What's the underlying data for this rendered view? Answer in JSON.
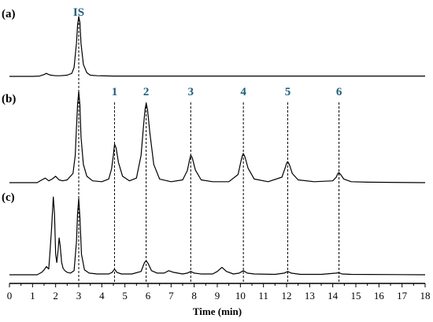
{
  "chart_data": {
    "type": "line",
    "xlabel": "Time (min)",
    "ylabel": "",
    "xlim": [
      0,
      18
    ],
    "x_ticks": [
      "0",
      "1",
      "2",
      "3",
      "4",
      "5",
      "6",
      "7",
      "8",
      "9",
      "10",
      "11",
      "12",
      "13",
      "14",
      "15",
      "16",
      "17",
      "18"
    ],
    "grid": false,
    "guide_lines": [
      {
        "label": "IS",
        "x": 3.0
      },
      {
        "label": "1",
        "x": 4.55
      },
      {
        "label": "2",
        "x": 5.92
      },
      {
        "label": "3",
        "x": 7.85
      },
      {
        "label": "4",
        "x": 10.13
      },
      {
        "label": "5",
        "x": 12.05
      },
      {
        "label": "6",
        "x": 14.27
      }
    ],
    "series": [
      {
        "panel": "(a)",
        "x": [
          0,
          1,
          1.3,
          1.5,
          1.6,
          1.7,
          1.8,
          2.0,
          2.2,
          2.5,
          2.7,
          2.8,
          2.9,
          2.95,
          3.0,
          3.05,
          3.1,
          3.2,
          3.35,
          3.5,
          3.8,
          4.5,
          6,
          8,
          10,
          12,
          14,
          16,
          18
        ],
        "y": [
          0,
          0,
          0.005,
          0.03,
          0.05,
          0.03,
          0.02,
          0.01,
          0.01,
          0.02,
          0.05,
          0.15,
          0.55,
          0.85,
          1.0,
          0.9,
          0.55,
          0.2,
          0.06,
          0.02,
          0.01,
          0.005,
          0.005,
          0.005,
          0.005,
          0.005,
          0.005,
          0.005,
          0.005
        ]
      },
      {
        "panel": "(b)",
        "x": [
          0,
          1.2,
          1.4,
          1.55,
          1.7,
          1.85,
          2.0,
          2.15,
          2.3,
          2.5,
          2.75,
          2.85,
          2.9,
          2.95,
          3.0,
          3.05,
          3.1,
          3.2,
          3.35,
          3.6,
          4.0,
          4.3,
          4.42,
          4.5,
          4.55,
          4.62,
          4.72,
          4.9,
          5.2,
          5.5,
          5.7,
          5.8,
          5.87,
          5.92,
          5.98,
          6.08,
          6.25,
          6.5,
          7.0,
          7.5,
          7.7,
          7.8,
          7.85,
          7.92,
          8.05,
          8.3,
          8.8,
          9.5,
          9.9,
          10.03,
          10.09,
          10.13,
          10.2,
          10.33,
          10.6,
          11.2,
          11.8,
          11.95,
          12.01,
          12.05,
          12.12,
          12.25,
          12.5,
          13.2,
          14.0,
          14.15,
          14.22,
          14.27,
          14.34,
          14.48,
          14.8,
          15.5,
          18
        ],
        "y": [
          0,
          0,
          0.03,
          0.05,
          0.02,
          0.04,
          0.07,
          0.03,
          0.02,
          0.03,
          0.1,
          0.3,
          0.6,
          0.85,
          1.0,
          0.85,
          0.5,
          0.2,
          0.07,
          0.02,
          0.01,
          0.04,
          0.15,
          0.3,
          0.42,
          0.38,
          0.22,
          0.07,
          0.02,
          0.05,
          0.3,
          0.6,
          0.8,
          0.87,
          0.8,
          0.55,
          0.2,
          0.04,
          0.01,
          0.03,
          0.13,
          0.25,
          0.3,
          0.27,
          0.14,
          0.03,
          0.01,
          0.01,
          0.09,
          0.24,
          0.3,
          0.32,
          0.28,
          0.16,
          0.04,
          0.01,
          0.06,
          0.17,
          0.22,
          0.23,
          0.2,
          0.1,
          0.03,
          0.01,
          0.02,
          0.06,
          0.1,
          0.11,
          0.09,
          0.04,
          0.01,
          0.005,
          0
        ]
      },
      {
        "panel": "(c)",
        "x": [
          0,
          1.2,
          1.4,
          1.5,
          1.6,
          1.7,
          1.75,
          1.82,
          1.9,
          1.95,
          2.0,
          2.05,
          2.1,
          2.15,
          2.2,
          2.26,
          2.32,
          2.4,
          2.5,
          2.65,
          2.8,
          2.9,
          2.95,
          3.0,
          3.05,
          3.12,
          3.25,
          3.45,
          3.8,
          4.3,
          4.45,
          4.55,
          4.65,
          4.85,
          5.3,
          5.7,
          5.85,
          5.92,
          6.0,
          6.15,
          6.4,
          6.7,
          6.9,
          7.1,
          7.5,
          7.7,
          7.85,
          8.0,
          8.3,
          8.8,
          9.0,
          9.2,
          9.4,
          9.7,
          9.95,
          10.13,
          10.3,
          10.6,
          11.5,
          11.9,
          12.05,
          12.2,
          12.6,
          13.5,
          14.15,
          14.27,
          14.4,
          14.8,
          18
        ],
        "y": [
          0,
          0,
          0.03,
          0.06,
          0.1,
          0.07,
          0.25,
          0.55,
          0.95,
          0.75,
          0.25,
          0.15,
          0.28,
          0.45,
          0.35,
          0.15,
          0.08,
          0.05,
          0.03,
          0.02,
          0.05,
          0.4,
          0.75,
          0.93,
          0.7,
          0.25,
          0.06,
          0.02,
          0.01,
          0.01,
          0.03,
          0.07,
          0.03,
          0.01,
          0.01,
          0.04,
          0.15,
          0.17,
          0.14,
          0.05,
          0.02,
          0.02,
          0.05,
          0.03,
          0.01,
          0.02,
          0.04,
          0.02,
          0.01,
          0.01,
          0.04,
          0.09,
          0.04,
          0.01,
          0.02,
          0.05,
          0.02,
          0.01,
          0.005,
          0.02,
          0.04,
          0.02,
          0.005,
          0.005,
          0.02,
          0.025,
          0.01,
          0.005,
          0
        ]
      }
    ]
  }
}
